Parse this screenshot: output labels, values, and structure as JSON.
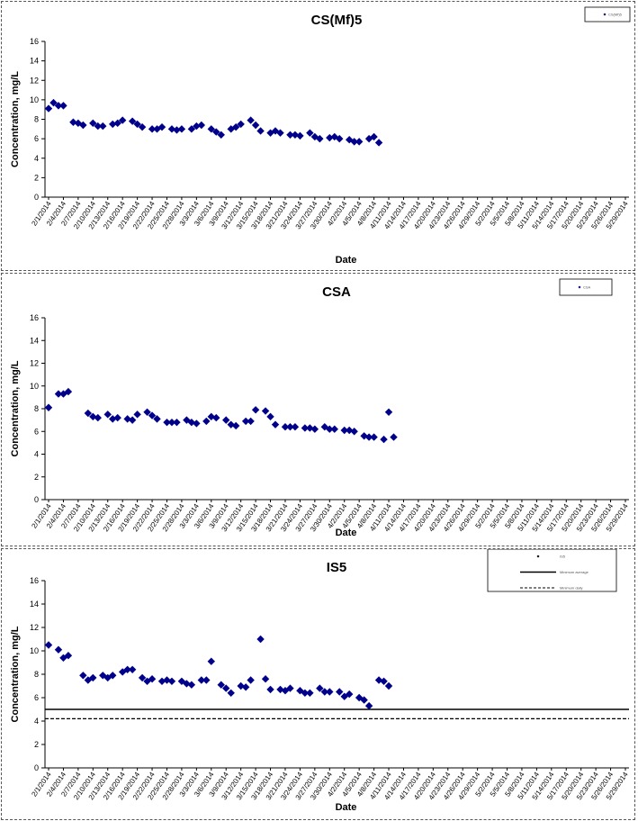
{
  "chart_data": [
    {
      "type": "scatter",
      "title": "CS(Mf)5",
      "xlabel": "Date",
      "ylabel": "Concentration, mg/L",
      "ylim": [
        0,
        16
      ],
      "yticks": [
        0,
        2,
        4,
        6,
        8,
        10,
        12,
        14,
        16
      ],
      "marker_color": "#00008B",
      "legend": [
        "CS(Mf)5"
      ],
      "legend_position": "top-right",
      "x_tick_labels": [
        "2/1/2014",
        "2/4/2014",
        "2/7/2014",
        "2/10/2014",
        "2/13/2014",
        "2/16/2014",
        "2/19/2014",
        "2/22/2014",
        "2/25/2014",
        "2/28/2014",
        "3/3/2014",
        "3/6/2014",
        "3/9/2014",
        "3/12/2014",
        "3/15/2014",
        "3/18/2014",
        "3/21/2014",
        "3/24/2014",
        "3/27/2014",
        "3/30/2014",
        "4/2/2014",
        "4/5/2014",
        "4/8/2014",
        "4/11/2014",
        "4/14/2014",
        "4/17/2014",
        "4/20/2014",
        "4/23/2014",
        "4/26/2014",
        "4/29/2014",
        "5/2/2014",
        "5/5/2014",
        "5/8/2014",
        "5/11/2014",
        "5/14/2014",
        "5/17/2014",
        "5/20/2014",
        "5/23/2014",
        "5/26/2014",
        "5/29/2014"
      ],
      "series": [
        {
          "points": [
            [
              "2/1/2014",
              9.1
            ],
            [
              "2/2/2014",
              9.7
            ],
            [
              "2/3/2014",
              9.4
            ],
            [
              "2/4/2014",
              9.4
            ],
            [
              "2/6/2014",
              7.7
            ],
            [
              "2/7/2014",
              7.6
            ],
            [
              "2/8/2014",
              7.4
            ],
            [
              "2/10/2014",
              7.6
            ],
            [
              "2/11/2014",
              7.3
            ],
            [
              "2/12/2014",
              7.3
            ],
            [
              "2/14/2014",
              7.5
            ],
            [
              "2/15/2014",
              7.6
            ],
            [
              "2/16/2014",
              7.9
            ],
            [
              "2/18/2014",
              7.8
            ],
            [
              "2/19/2014",
              7.5
            ],
            [
              "2/20/2014",
              7.2
            ],
            [
              "2/22/2014",
              7.0
            ],
            [
              "2/23/2014",
              7.0
            ],
            [
              "2/24/2014",
              7.2
            ],
            [
              "2/26/2014",
              7.0
            ],
            [
              "2/27/2014",
              6.9
            ],
            [
              "2/28/2014",
              7.0
            ],
            [
              "3/2/2014",
              7.0
            ],
            [
              "3/3/2014",
              7.3
            ],
            [
              "3/4/2014",
              7.4
            ],
            [
              "3/6/2014",
              7.0
            ],
            [
              "3/7/2014",
              6.7
            ],
            [
              "3/8/2014",
              6.4
            ],
            [
              "3/10/2014",
              7.0
            ],
            [
              "3/11/2014",
              7.2
            ],
            [
              "3/12/2014",
              7.5
            ],
            [
              "3/14/2014",
              7.9
            ],
            [
              "3/15/2014",
              7.4
            ],
            [
              "3/16/2014",
              6.8
            ],
            [
              "3/18/2014",
              6.6
            ],
            [
              "3/19/2014",
              6.8
            ],
            [
              "3/20/2014",
              6.6
            ],
            [
              "3/22/2014",
              6.4
            ],
            [
              "3/23/2014",
              6.4
            ],
            [
              "3/24/2014",
              6.3
            ],
            [
              "3/26/2014",
              6.6
            ],
            [
              "3/27/2014",
              6.2
            ],
            [
              "3/28/2014",
              6.0
            ],
            [
              "3/30/2014",
              6.1
            ],
            [
              "3/31/2014",
              6.2
            ],
            [
              "4/1/2014",
              6.0
            ],
            [
              "4/3/2014",
              5.9
            ],
            [
              "4/4/2014",
              5.7
            ],
            [
              "4/5/2014",
              5.7
            ],
            [
              "4/7/2014",
              6.0
            ],
            [
              "4/8/2014",
              6.2
            ],
            [
              "4/9/2014",
              5.6
            ]
          ]
        }
      ]
    },
    {
      "type": "scatter",
      "title": "CSA",
      "xlabel": "Date",
      "ylabel": "Concentration, mg/L",
      "ylim": [
        0,
        16
      ],
      "yticks": [
        0,
        2,
        4,
        6,
        8,
        10,
        12,
        14,
        16
      ],
      "marker_color": "#00008B",
      "legend": [
        "CSA"
      ],
      "legend_position": "top-right",
      "x_tick_labels": [
        "2/1/2014",
        "2/4/2014",
        "2/7/2014",
        "2/10/2014",
        "2/13/2014",
        "2/16/2014",
        "2/19/2014",
        "2/22/2014",
        "2/25/2014",
        "2/28/2014",
        "3/3/2014",
        "3/6/2014",
        "3/9/2014",
        "3/12/2014",
        "3/15/2014",
        "3/18/2014",
        "3/21/2014",
        "3/24/2014",
        "3/27/2014",
        "3/30/2014",
        "4/2/2014",
        "4/5/2014",
        "4/8/2014",
        "4/11/2014",
        "4/14/2014",
        "4/17/2014",
        "4/20/2014",
        "4/23/2014",
        "4/26/2014",
        "4/29/2014",
        "5/2/2014",
        "5/5/2014",
        "5/8/2014",
        "5/11/2014",
        "5/14/2014",
        "5/17/2014",
        "5/20/2014",
        "5/23/2014",
        "5/26/2014",
        "5/29/2014"
      ],
      "series": [
        {
          "points": [
            [
              "2/1/2014",
              8.1
            ],
            [
              "2/3/2014",
              9.3
            ],
            [
              "2/4/2014",
              9.3
            ],
            [
              "2/5/2014",
              9.5
            ],
            [
              "2/9/2014",
              7.6
            ],
            [
              "2/10/2014",
              7.3
            ],
            [
              "2/11/2014",
              7.2
            ],
            [
              "2/13/2014",
              7.5
            ],
            [
              "2/14/2014",
              7.1
            ],
            [
              "2/15/2014",
              7.2
            ],
            [
              "2/17/2014",
              7.1
            ],
            [
              "2/18/2014",
              7.0
            ],
            [
              "2/19/2014",
              7.5
            ],
            [
              "2/21/2014",
              7.7
            ],
            [
              "2/22/2014",
              7.4
            ],
            [
              "2/23/2014",
              7.1
            ],
            [
              "2/25/2014",
              6.8
            ],
            [
              "2/26/2014",
              6.8
            ],
            [
              "2/27/2014",
              6.8
            ],
            [
              "3/1/2014",
              7.0
            ],
            [
              "3/2/2014",
              6.8
            ],
            [
              "3/3/2014",
              6.7
            ],
            [
              "3/5/2014",
              6.9
            ],
            [
              "3/6/2014",
              7.3
            ],
            [
              "3/7/2014",
              7.2
            ],
            [
              "3/9/2014",
              7.0
            ],
            [
              "3/10/2014",
              6.6
            ],
            [
              "3/11/2014",
              6.5
            ],
            [
              "3/13/2014",
              6.9
            ],
            [
              "3/14/2014",
              6.9
            ],
            [
              "3/15/2014",
              7.9
            ],
            [
              "3/17/2014",
              7.8
            ],
            [
              "3/18/2014",
              7.3
            ],
            [
              "3/19/2014",
              6.6
            ],
            [
              "3/21/2014",
              6.4
            ],
            [
              "3/22/2014",
              6.4
            ],
            [
              "3/23/2014",
              6.4
            ],
            [
              "3/25/2014",
              6.3
            ],
            [
              "3/26/2014",
              6.3
            ],
            [
              "3/27/2014",
              6.2
            ],
            [
              "3/29/2014",
              6.4
            ],
            [
              "3/30/2014",
              6.2
            ],
            [
              "3/31/2014",
              6.2
            ],
            [
              "4/2/2014",
              6.1
            ],
            [
              "4/3/2014",
              6.1
            ],
            [
              "4/4/2014",
              6.0
            ],
            [
              "4/6/2014",
              5.6
            ],
            [
              "4/7/2014",
              5.5
            ],
            [
              "4/8/2014",
              5.5
            ],
            [
              "4/10/2014",
              5.3
            ],
            [
              "4/11/2014",
              7.7
            ],
            [
              "4/12/2014",
              5.5
            ]
          ]
        }
      ]
    },
    {
      "type": "scatter",
      "title": "IS5",
      "xlabel": "Date",
      "ylabel": "Concentration, mg/L",
      "ylim": [
        0,
        16
      ],
      "yticks": [
        0,
        2,
        4,
        6,
        8,
        10,
        12,
        14,
        16
      ],
      "marker_color": "#00008B",
      "legend": [
        "IS5",
        "Minimum average",
        "Minimum daily"
      ],
      "legend_position": "top-right",
      "reference_lines": [
        {
          "name": "Minimum average",
          "y": 5.0,
          "style": "solid"
        },
        {
          "name": "Minimum daily",
          "y": 4.2,
          "style": "dashed"
        }
      ],
      "x_tick_labels": [
        "2/1/2014",
        "2/4/2014",
        "2/7/2014",
        "2/10/2014",
        "2/13/2014",
        "2/16/2014",
        "2/19/2014",
        "2/22/2014",
        "2/25/2014",
        "2/28/2014",
        "3/3/2014",
        "3/6/2014",
        "3/9/2014",
        "3/12/2014",
        "3/15/2014",
        "3/18/2014",
        "3/21/2014",
        "3/24/2014",
        "3/27/2014",
        "3/30/2014",
        "4/2/2014",
        "4/5/2014",
        "4/8/2014",
        "4/11/2014",
        "4/14/2014",
        "4/17/2014",
        "4/20/2014",
        "4/23/2014",
        "4/26/2014",
        "4/29/2014",
        "5/2/2014",
        "5/5/2014",
        "5/8/2014",
        "5/11/2014",
        "5/14/2014",
        "5/17/2014",
        "5/20/2014",
        "5/23/2014",
        "5/26/2014",
        "5/29/2014"
      ],
      "series": [
        {
          "points": [
            [
              "2/1/2014",
              10.5
            ],
            [
              "2/3/2014",
              10.1
            ],
            [
              "2/4/2014",
              9.4
            ],
            [
              "2/5/2014",
              9.6
            ],
            [
              "2/8/2014",
              7.9
            ],
            [
              "2/9/2014",
              7.5
            ],
            [
              "2/10/2014",
              7.7
            ],
            [
              "2/12/2014",
              7.9
            ],
            [
              "2/13/2014",
              7.7
            ],
            [
              "2/14/2014",
              7.9
            ],
            [
              "2/16/2014",
              8.2
            ],
            [
              "2/17/2014",
              8.4
            ],
            [
              "2/18/2014",
              8.4
            ],
            [
              "2/20/2014",
              7.7
            ],
            [
              "2/21/2014",
              7.4
            ],
            [
              "2/22/2014",
              7.6
            ],
            [
              "2/24/2014",
              7.4
            ],
            [
              "2/25/2014",
              7.5
            ],
            [
              "2/26/2014",
              7.4
            ],
            [
              "2/28/2014",
              7.4
            ],
            [
              "3/1/2014",
              7.2
            ],
            [
              "3/2/2014",
              7.1
            ],
            [
              "3/4/2014",
              7.5
            ],
            [
              "3/5/2014",
              7.5
            ],
            [
              "3/6/2014",
              9.1
            ],
            [
              "3/8/2014",
              7.1
            ],
            [
              "3/9/2014",
              6.8
            ],
            [
              "3/10/2014",
              6.4
            ],
            [
              "3/12/2014",
              7.0
            ],
            [
              "3/13/2014",
              6.9
            ],
            [
              "3/14/2014",
              7.5
            ],
            [
              "3/16/2014",
              11.0
            ],
            [
              "3/17/2014",
              7.6
            ],
            [
              "3/18/2014",
              6.7
            ],
            [
              "3/20/2014",
              6.7
            ],
            [
              "3/21/2014",
              6.6
            ],
            [
              "3/22/2014",
              6.8
            ],
            [
              "3/24/2014",
              6.6
            ],
            [
              "3/25/2014",
              6.4
            ],
            [
              "3/26/2014",
              6.4
            ],
            [
              "3/28/2014",
              6.8
            ],
            [
              "3/29/2014",
              6.5
            ],
            [
              "3/30/2014",
              6.5
            ],
            [
              "4/1/2014",
              6.5
            ],
            [
              "4/2/2014",
              6.1
            ],
            [
              "4/3/2014",
              6.3
            ],
            [
              "4/5/2014",
              6.0
            ],
            [
              "4/6/2014",
              5.8
            ],
            [
              "4/7/2014",
              5.3
            ],
            [
              "4/9/2014",
              7.5
            ],
            [
              "4/10/2014",
              7.4
            ],
            [
              "4/11/2014",
              7.0
            ]
          ]
        }
      ]
    }
  ]
}
